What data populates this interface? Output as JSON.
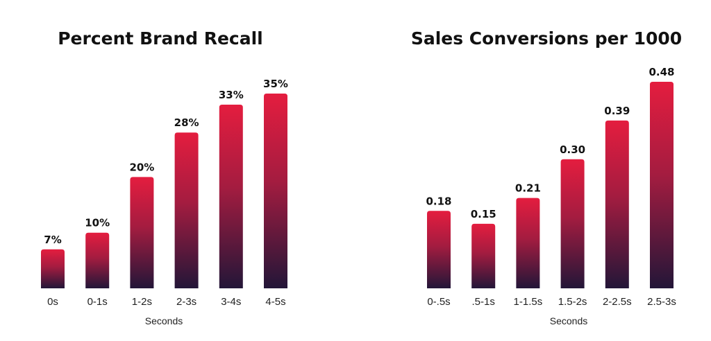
{
  "colors": {
    "bar_top": "#e41d3f",
    "bar_bottom": "#231638",
    "text": "#111111"
  },
  "chart_data": [
    {
      "type": "bar",
      "title": "Percent Brand Recall",
      "xlabel": "Seconds",
      "ylabel": "",
      "categories": [
        "0s",
        "0-1s",
        "1-2s",
        "2-3s",
        "3-4s",
        "4-5s"
      ],
      "values": [
        7,
        10,
        20,
        28,
        33,
        35
      ],
      "value_labels": [
        "7%",
        "10%",
        "20%",
        "28%",
        "33%",
        "35%"
      ],
      "ylim": [
        0,
        35
      ],
      "grid": false,
      "legend": "none"
    },
    {
      "type": "bar",
      "title": "Sales Conversions per 1000",
      "xlabel": "Seconds",
      "ylabel": "",
      "categories": [
        "0-.5s",
        ".5-1s",
        "1-1.5s",
        "1.5-2s",
        "2-2.5s",
        "2.5-3s"
      ],
      "values": [
        0.18,
        0.15,
        0.21,
        0.3,
        0.39,
        0.48
      ],
      "value_labels": [
        "0.18",
        "0.15",
        "0.21",
        "0.30",
        "0.39",
        "0.48"
      ],
      "ylim": [
        0,
        0.48
      ],
      "grid": false,
      "legend": "none"
    }
  ]
}
